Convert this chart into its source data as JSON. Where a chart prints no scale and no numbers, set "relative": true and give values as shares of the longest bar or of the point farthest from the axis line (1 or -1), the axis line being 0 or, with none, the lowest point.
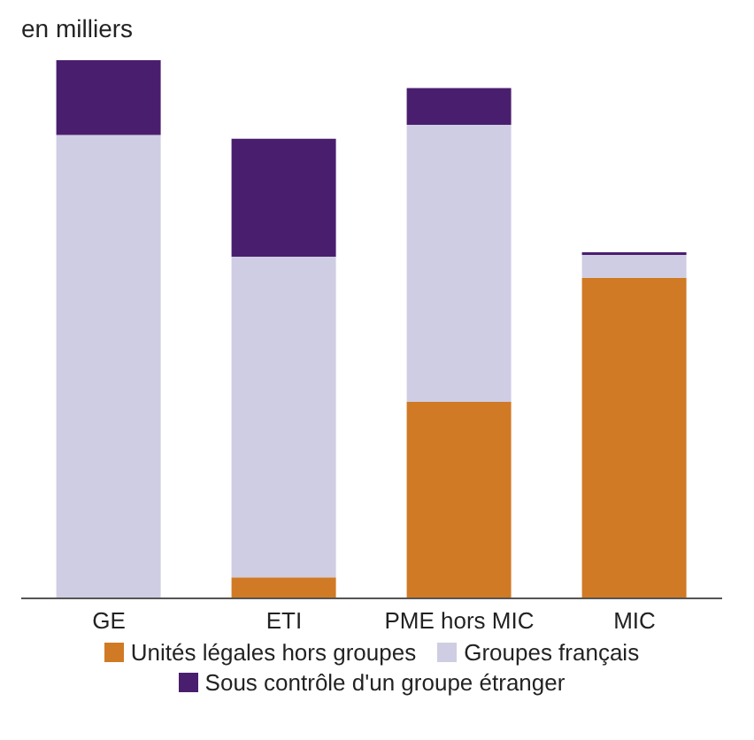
{
  "chart_data": {
    "type": "bar",
    "subtitle": "en milliers",
    "categories": [
      "GE",
      "ETI",
      "PME hors MIC",
      "MIC"
    ],
    "stacked": true,
    "relative": true,
    "legend": "bottom",
    "series": [
      {
        "name": "Unités légales hors groupes",
        "color": "#d07a25",
        "values": [
          0,
          0.039,
          0.365,
          0.596
        ]
      },
      {
        "name": "Groupes français",
        "color": "#cfcde3",
        "values": [
          0.861,
          0.596,
          0.515,
          0.042
        ]
      },
      {
        "name": "Sous contrôle d'un groupe étranger",
        "color": "#4a1e6e",
        "values": [
          0.139,
          0.219,
          0.068,
          0.005
        ]
      }
    ]
  }
}
